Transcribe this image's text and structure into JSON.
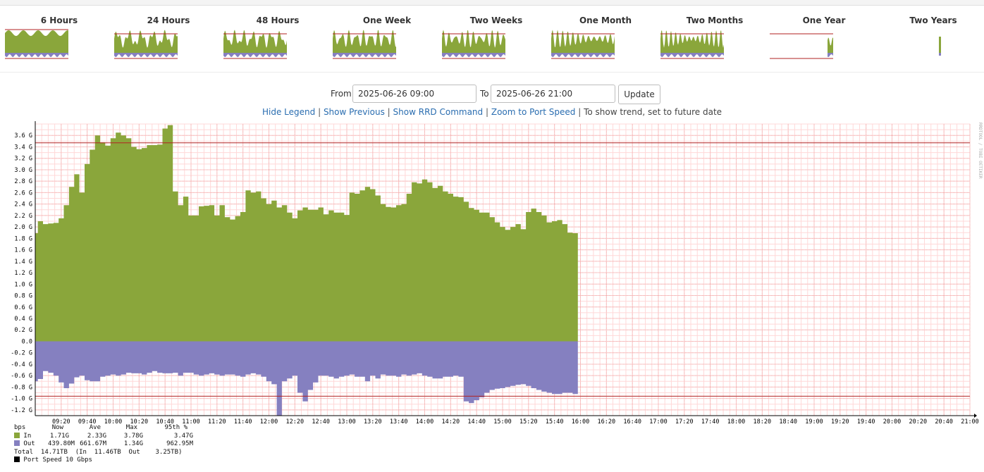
{
  "thumbnails": [
    {
      "label": "6 Hours",
      "id": "6h"
    },
    {
      "label": "24 Hours",
      "id": "24h"
    },
    {
      "label": "48 Hours",
      "id": "48h"
    },
    {
      "label": "One Week",
      "id": "1w"
    },
    {
      "label": "Two Weeks",
      "id": "2w"
    },
    {
      "label": "One Month",
      "id": "1m"
    },
    {
      "label": "Two Months",
      "id": "2m"
    },
    {
      "label": "One Year",
      "id": "1y"
    },
    {
      "label": "Two Years",
      "id": "2y"
    }
  ],
  "form": {
    "from_label": "From",
    "from_value": "2025-06-26 09:00",
    "to_label": "To",
    "to_value": "2025-06-26 21:00",
    "update_label": "Update"
  },
  "links": {
    "hide_legend": "Hide Legend",
    "show_previous": "Show Previous",
    "show_rrd": "Show RRD Command",
    "zoom": "Zoom to Port Speed",
    "trend_note": "To show trend, set to future date",
    "separator": "|"
  },
  "colors": {
    "in": "#8aa63b",
    "out": "#8580c0",
    "percentile_line": "#b22222",
    "grid_minor": "#ffd8d8",
    "grid_major": "#f0a8a8"
  },
  "chart_data": {
    "type": "area",
    "watermark": "RRDTOOL / TOBI OETIKER",
    "ylim": [
      -1.3,
      3.8
    ],
    "yticks": [
      -1.2,
      -1.0,
      -0.8,
      -0.6,
      -0.4,
      -0.2,
      0.0,
      0.2,
      0.4,
      0.6,
      0.8,
      1.0,
      1.2,
      1.4,
      1.6,
      1.8,
      2.0,
      2.2,
      2.4,
      2.6,
      2.8,
      3.0,
      3.2,
      3.4,
      3.6
    ],
    "ytick_labels": [
      "-1.2 G",
      "-1.0 G",
      "-0.8 G",
      "-0.6 G",
      "-0.4 G",
      "-0.2 G",
      "0.0",
      "0.2 G",
      "0.4 G",
      "0.6 G",
      "0.8 G",
      "1.0 G",
      "1.2 G",
      "1.4 G",
      "1.6 G",
      "1.8 G",
      "2.0 G",
      "2.2 G",
      "2.4 G",
      "2.6 G",
      "2.8 G",
      "3.0 G",
      "3.2 G",
      "3.4 G",
      "3.6 G"
    ],
    "xlim": [
      "09:00",
      "21:00"
    ],
    "xtick_labels": [
      "09:20",
      "09:40",
      "10:00",
      "10:20",
      "10:40",
      "11:00",
      "11:20",
      "11:40",
      "12:00",
      "12:20",
      "12:40",
      "13:00",
      "13:20",
      "13:40",
      "14:00",
      "14:20",
      "14:40",
      "15:00",
      "15:20",
      "15:40",
      "16:00",
      "16:20",
      "16:40",
      "17:00",
      "17:20",
      "17:40",
      "18:00",
      "18:20",
      "18:40",
      "19:00",
      "19:20",
      "19:40",
      "20:00",
      "20:20",
      "20:40",
      "21:00"
    ],
    "percentile_in": 3.47,
    "percentile_out": -0.96,
    "series": [
      {
        "name": "In",
        "points": [
          [
            "09:00",
            1.89
          ],
          [
            "09:02",
            2.1
          ],
          [
            "09:06",
            2.05
          ],
          [
            "09:10",
            2.06
          ],
          [
            "09:14",
            2.07
          ],
          [
            "09:18",
            2.15
          ],
          [
            "09:22",
            2.38
          ],
          [
            "09:26",
            2.7
          ],
          [
            "09:30",
            2.92
          ],
          [
            "09:34",
            2.6
          ],
          [
            "09:38",
            3.1
          ],
          [
            "09:42",
            3.35
          ],
          [
            "09:46",
            3.6
          ],
          [
            "09:50",
            3.48
          ],
          [
            "09:54",
            3.42
          ],
          [
            "09:58",
            3.55
          ],
          [
            "10:02",
            3.65
          ],
          [
            "10:06",
            3.6
          ],
          [
            "10:10",
            3.55
          ],
          [
            "10:14",
            3.4
          ],
          [
            "10:18",
            3.36
          ],
          [
            "10:22",
            3.38
          ],
          [
            "10:26",
            3.43
          ],
          [
            "10:30",
            3.43
          ],
          [
            "10:34",
            3.44
          ],
          [
            "10:38",
            3.72
          ],
          [
            "10:42",
            3.78
          ],
          [
            "10:46",
            2.62
          ],
          [
            "10:50",
            2.38
          ],
          [
            "10:54",
            2.53
          ],
          [
            "10:58",
            2.2
          ],
          [
            "11:02",
            2.2
          ],
          [
            "11:06",
            2.36
          ],
          [
            "11:10",
            2.37
          ],
          [
            "11:14",
            2.38
          ],
          [
            "11:18",
            2.2
          ],
          [
            "11:22",
            2.38
          ],
          [
            "11:26",
            2.17
          ],
          [
            "11:30",
            2.13
          ],
          [
            "11:34",
            2.19
          ],
          [
            "11:38",
            2.26
          ],
          [
            "11:42",
            2.64
          ],
          [
            "11:46",
            2.6
          ],
          [
            "11:50",
            2.62
          ],
          [
            "11:54",
            2.5
          ],
          [
            "11:58",
            2.4
          ],
          [
            "12:02",
            2.46
          ],
          [
            "12:06",
            2.34
          ],
          [
            "12:10",
            2.38
          ],
          [
            "12:14",
            2.25
          ],
          [
            "12:18",
            2.15
          ],
          [
            "12:22",
            2.29
          ],
          [
            "12:26",
            2.34
          ],
          [
            "12:30",
            2.3
          ],
          [
            "12:34",
            2.3
          ],
          [
            "12:38",
            2.34
          ],
          [
            "12:42",
            2.22
          ],
          [
            "12:46",
            2.29
          ],
          [
            "12:50",
            2.25
          ],
          [
            "12:54",
            2.25
          ],
          [
            "12:58",
            2.21
          ],
          [
            "13:02",
            2.6
          ],
          [
            "13:06",
            2.58
          ],
          [
            "13:10",
            2.64
          ],
          [
            "13:14",
            2.7
          ],
          [
            "13:18",
            2.66
          ],
          [
            "13:22",
            2.55
          ],
          [
            "13:26",
            2.4
          ],
          [
            "13:30",
            2.35
          ],
          [
            "13:34",
            2.34
          ],
          [
            "13:38",
            2.38
          ],
          [
            "13:42",
            2.4
          ],
          [
            "13:46",
            2.58
          ],
          [
            "13:50",
            2.78
          ],
          [
            "13:54",
            2.76
          ],
          [
            "13:58",
            2.83
          ],
          [
            "14:02",
            2.78
          ],
          [
            "14:06",
            2.68
          ],
          [
            "14:10",
            2.72
          ],
          [
            "14:14",
            2.62
          ],
          [
            "14:18",
            2.58
          ],
          [
            "14:22",
            2.53
          ],
          [
            "14:26",
            2.52
          ],
          [
            "14:30",
            2.44
          ],
          [
            "14:34",
            2.33
          ],
          [
            "14:38",
            2.3
          ],
          [
            "14:42",
            2.25
          ],
          [
            "14:46",
            2.25
          ],
          [
            "14:50",
            2.17
          ],
          [
            "14:54",
            2.08
          ],
          [
            "14:58",
            2.0
          ],
          [
            "15:02",
            1.95
          ],
          [
            "15:06",
            2.0
          ],
          [
            "15:10",
            2.05
          ],
          [
            "15:14",
            1.96
          ],
          [
            "15:18",
            2.26
          ],
          [
            "15:22",
            2.32
          ],
          [
            "15:26",
            2.26
          ],
          [
            "15:30",
            2.2
          ],
          [
            "15:34",
            2.08
          ],
          [
            "15:38",
            2.1
          ],
          [
            "15:42",
            2.12
          ],
          [
            "15:46",
            2.05
          ],
          [
            "15:50",
            1.9
          ],
          [
            "15:54",
            1.89
          ]
        ]
      },
      {
        "name": "Out",
        "points": [
          [
            "09:00",
            -0.7
          ],
          [
            "09:02",
            -0.66
          ],
          [
            "09:06",
            -0.52
          ],
          [
            "09:10",
            -0.55
          ],
          [
            "09:14",
            -0.6
          ],
          [
            "09:18",
            -0.72
          ],
          [
            "09:22",
            -0.82
          ],
          [
            "09:26",
            -0.74
          ],
          [
            "09:30",
            -0.63
          ],
          [
            "09:34",
            -0.6
          ],
          [
            "09:38",
            -0.68
          ],
          [
            "09:42",
            -0.7
          ],
          [
            "09:46",
            -0.7
          ],
          [
            "09:50",
            -0.62
          ],
          [
            "09:54",
            -0.6
          ],
          [
            "09:58",
            -0.58
          ],
          [
            "10:02",
            -0.6
          ],
          [
            "10:06",
            -0.58
          ],
          [
            "10:10",
            -0.55
          ],
          [
            "10:14",
            -0.56
          ],
          [
            "10:18",
            -0.56
          ],
          [
            "10:22",
            -0.58
          ],
          [
            "10:26",
            -0.55
          ],
          [
            "10:30",
            -0.52
          ],
          [
            "10:34",
            -0.55
          ],
          [
            "10:38",
            -0.56
          ],
          [
            "10:42",
            -0.56
          ],
          [
            "10:46",
            -0.55
          ],
          [
            "10:50",
            -0.6
          ],
          [
            "10:54",
            -0.55
          ],
          [
            "10:58",
            -0.55
          ],
          [
            "11:02",
            -0.58
          ],
          [
            "11:06",
            -0.6
          ],
          [
            "11:10",
            -0.58
          ],
          [
            "11:14",
            -0.56
          ],
          [
            "11:18",
            -0.58
          ],
          [
            "11:22",
            -0.6
          ],
          [
            "11:26",
            -0.58
          ],
          [
            "11:30",
            -0.58
          ],
          [
            "11:34",
            -0.6
          ],
          [
            "11:38",
            -0.62
          ],
          [
            "11:42",
            -0.58
          ],
          [
            "11:46",
            -0.56
          ],
          [
            "11:50",
            -0.58
          ],
          [
            "11:54",
            -0.62
          ],
          [
            "11:58",
            -0.7
          ],
          [
            "12:02",
            -0.75
          ],
          [
            "12:06",
            -1.3
          ],
          [
            "12:10",
            -0.7
          ],
          [
            "12:14",
            -0.65
          ],
          [
            "12:18",
            -0.6
          ],
          [
            "12:22",
            -0.9
          ],
          [
            "12:26",
            -1.05
          ],
          [
            "12:30",
            -0.85
          ],
          [
            "12:34",
            -0.72
          ],
          [
            "12:38",
            -0.6
          ],
          [
            "12:42",
            -0.6
          ],
          [
            "12:46",
            -0.62
          ],
          [
            "12:50",
            -0.65
          ],
          [
            "12:54",
            -0.62
          ],
          [
            "12:58",
            -0.6
          ],
          [
            "13:02",
            -0.58
          ],
          [
            "13:06",
            -0.62
          ],
          [
            "13:10",
            -0.62
          ],
          [
            "13:14",
            -0.7
          ],
          [
            "13:18",
            -0.6
          ],
          [
            "13:22",
            -0.65
          ],
          [
            "13:26",
            -0.58
          ],
          [
            "13:30",
            -0.6
          ],
          [
            "13:34",
            -0.6
          ],
          [
            "13:38",
            -0.62
          ],
          [
            "13:42",
            -0.58
          ],
          [
            "13:46",
            -0.6
          ],
          [
            "13:50",
            -0.58
          ],
          [
            "13:54",
            -0.56
          ],
          [
            "13:58",
            -0.6
          ],
          [
            "14:02",
            -0.62
          ],
          [
            "14:06",
            -0.65
          ],
          [
            "14:10",
            -0.65
          ],
          [
            "14:14",
            -0.62
          ],
          [
            "14:18",
            -0.62
          ],
          [
            "14:22",
            -0.6
          ],
          [
            "14:26",
            -0.62
          ],
          [
            "14:30",
            -1.05
          ],
          [
            "14:34",
            -1.08
          ],
          [
            "14:38",
            -1.03
          ],
          [
            "14:42",
            -0.98
          ],
          [
            "14:46",
            -0.9
          ],
          [
            "14:50",
            -0.85
          ],
          [
            "14:54",
            -0.83
          ],
          [
            "14:58",
            -0.82
          ],
          [
            "15:02",
            -0.8
          ],
          [
            "15:06",
            -0.78
          ],
          [
            "15:10",
            -0.76
          ],
          [
            "15:14",
            -0.75
          ],
          [
            "15:18",
            -0.78
          ],
          [
            "15:22",
            -0.82
          ],
          [
            "15:26",
            -0.85
          ],
          [
            "15:30",
            -0.88
          ],
          [
            "15:34",
            -0.9
          ],
          [
            "15:38",
            -0.92
          ],
          [
            "15:42",
            -0.92
          ],
          [
            "15:46",
            -0.9
          ],
          [
            "15:50",
            -0.9
          ],
          [
            "15:54",
            -0.92
          ]
        ]
      }
    ],
    "legend": {
      "unit": "bps",
      "headers": [
        "Now",
        "Ave",
        "Max",
        "95th %"
      ],
      "rows": [
        {
          "name": "In",
          "now": "1.71G",
          "ave": "2.33G",
          "max": "3.78G",
          "p95": "3.47G"
        },
        {
          "name": "Out",
          "now": "439.80M",
          "ave": "661.67M",
          "max": "1.34G",
          "p95": "962.95M"
        }
      ],
      "total_line": "Total  14.71TB  (In  11.46TB  Out    3.25TB)",
      "port_speed": "Port Speed 10 Gbps"
    }
  }
}
